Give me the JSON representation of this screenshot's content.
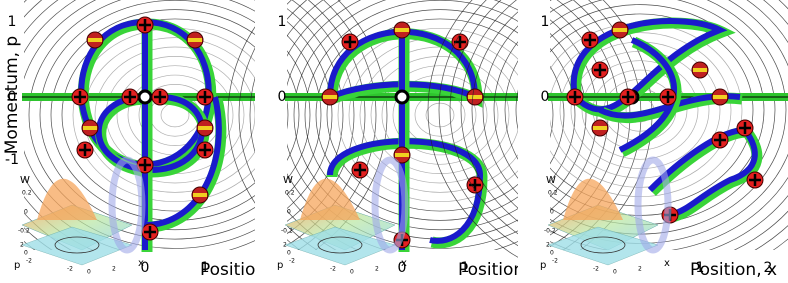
{
  "y_axis_label": "Momentum, p",
  "panels": [
    {
      "x_axis_label": "Position, x",
      "y_tick_labels": [
        "1",
        "0",
        "-1"
      ],
      "x_tick_labels": [
        "0",
        "1"
      ],
      "inset": {
        "z_label": "W",
        "p_label": "p",
        "x_label": "x",
        "tick_labels": [
          "0.2",
          "0",
          "-0.2",
          "2",
          "0",
          "-2",
          "-2",
          "0",
          "2"
        ]
      }
    },
    {
      "x_axis_label": "Position, x",
      "y_tick_labels": [
        "1",
        "0"
      ],
      "x_tick_labels": [
        "0",
        "1"
      ],
      "inset": {
        "z_label": "W",
        "p_label": "p",
        "x_label": "x",
        "tick_labels": [
          "0.2",
          "0",
          "-0.2",
          "2",
          "0",
          "-2",
          "-2",
          "0",
          "2"
        ]
      }
    },
    {
      "x_axis_label": "Position, x",
      "y_tick_labels": [
        "1",
        "0"
      ],
      "x_tick_labels": [
        "1",
        "2"
      ],
      "inset": {
        "z_label": "W",
        "p_label": "p",
        "x_label": "x",
        "tick_labels": [
          "0.2",
          "0",
          "-0.2",
          "2",
          "0",
          "-2",
          "-2",
          "0",
          "2"
        ]
      }
    }
  ]
}
